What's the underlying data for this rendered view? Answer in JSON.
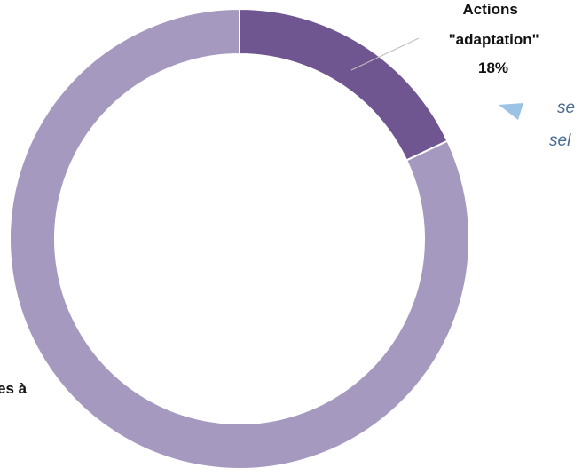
{
  "chart_data": {
    "type": "pie",
    "donut": true,
    "start_angle_deg": 0,
    "direction": "clockwise",
    "slices": [
      {
        "label_lines": [
          "Actions",
          "\"adaptation\"",
          "18%"
        ],
        "value": 18,
        "color": "#6f5690"
      },
      {
        "label_lines": [
          "es à"
        ],
        "value": 82,
        "color": "#a699bf"
      }
    ],
    "separator_color": "#ffffff",
    "side_note": {
      "lines": [
        "se",
        "sel"
      ],
      "color": "#4a6a96",
      "arrow_color": "#9cc3e6"
    }
  }
}
